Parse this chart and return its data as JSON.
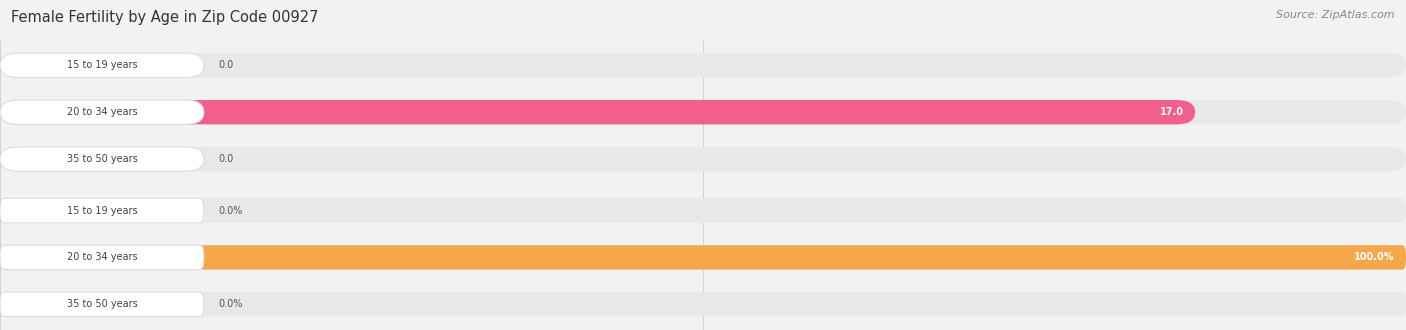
{
  "title": "Female Fertility by Age in Zip Code 00927",
  "source": "Source: ZipAtlas.com",
  "fig_bg": "#f2f2f2",
  "top_chart": {
    "categories": [
      "15 to 19 years",
      "20 to 34 years",
      "35 to 50 years"
    ],
    "values": [
      0.0,
      17.0,
      0.0
    ],
    "bar_color": "#f0608a",
    "bar_bg_color": "#e8e8e8",
    "label_bg_color": "#ffffff",
    "label_edge_color": "#dddddd",
    "xlim": [
      0,
      20
    ],
    "xticks": [
      0.0,
      10.0,
      20.0
    ],
    "is_percent": false
  },
  "bottom_chart": {
    "categories": [
      "15 to 19 years",
      "20 to 34 years",
      "35 to 50 years"
    ],
    "values": [
      0.0,
      100.0,
      0.0
    ],
    "bar_color": "#f5a84a",
    "bar_bg_color": "#e8e8e8",
    "label_bg_color": "#ffffff",
    "label_edge_color": "#dddddd",
    "xlim": [
      0,
      100
    ],
    "xticks": [
      0.0,
      50.0,
      100.0
    ],
    "is_percent": true
  }
}
